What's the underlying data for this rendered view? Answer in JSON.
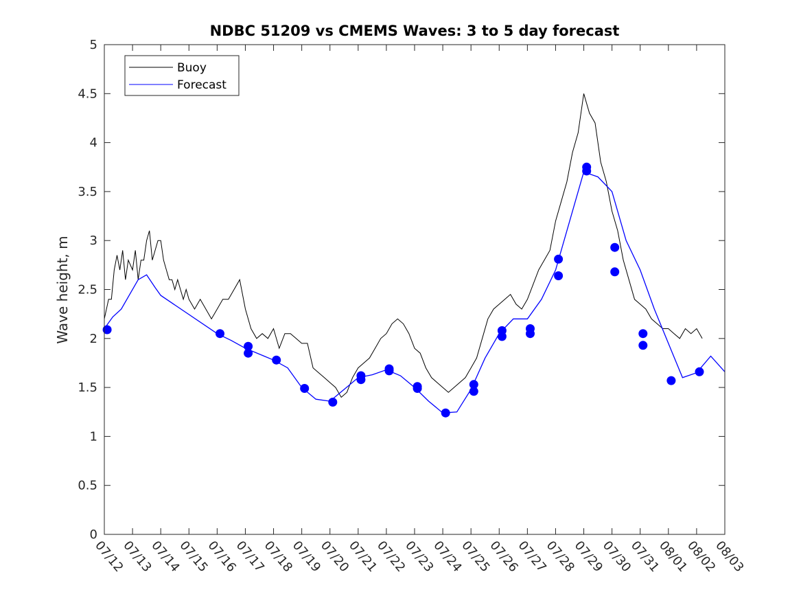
{
  "chart_data": {
    "type": "line",
    "title": "NDBC 51209 vs CMEMS Waves: 3 to 5 day forecast",
    "xlabel": "",
    "ylabel": "Wave height, m",
    "xlim": [
      "07/12",
      "08/03"
    ],
    "ylim": [
      0,
      5
    ],
    "y_ticks": [
      "0",
      "0.5",
      "1",
      "1.5",
      "2",
      "2.5",
      "3",
      "3.5",
      "4",
      "4.5",
      "5"
    ],
    "x_ticks": [
      "07/12",
      "07/13",
      "07/14",
      "07/15",
      "07/16",
      "07/17",
      "07/18",
      "07/19",
      "07/20",
      "07/21",
      "07/22",
      "07/23",
      "07/24",
      "07/25",
      "07/26",
      "07/27",
      "07/28",
      "07/29",
      "07/30",
      "07/31",
      "08/01",
      "08/02",
      "08/03"
    ],
    "grid": false,
    "legend_position": "top-left",
    "colors": {
      "buoy": "#000000",
      "forecast": "#0000ff"
    },
    "series": [
      {
        "name": "Buoy",
        "x": [
          0.0,
          0.15,
          0.25,
          0.35,
          0.45,
          0.55,
          0.65,
          0.75,
          0.85,
          1.0,
          1.1,
          1.2,
          1.3,
          1.4,
          1.5,
          1.6,
          1.7,
          1.8,
          1.9,
          2.0,
          2.1,
          2.2,
          2.3,
          2.4,
          2.5,
          2.6,
          2.7,
          2.8,
          2.9,
          3.0,
          3.2,
          3.4,
          3.6,
          3.8,
          4.0,
          4.2,
          4.4,
          4.6,
          4.8,
          5.0,
          5.2,
          5.4,
          5.6,
          5.8,
          6.0,
          6.2,
          6.4,
          6.6,
          6.8,
          7.0,
          7.2,
          7.4,
          7.6,
          7.8,
          8.0,
          8.2,
          8.4,
          8.6,
          8.8,
          9.0,
          9.2,
          9.4,
          9.6,
          9.8,
          10.0,
          10.2,
          10.4,
          10.6,
          10.8,
          11.0,
          11.2,
          11.4,
          11.6,
          11.8,
          12.0,
          12.2,
          12.4,
          12.6,
          12.8,
          13.0,
          13.2,
          13.4,
          13.6,
          13.8,
          14.0,
          14.2,
          14.4,
          14.6,
          14.8,
          15.0,
          15.2,
          15.4,
          15.6,
          15.8,
          16.0,
          16.2,
          16.4,
          16.6,
          16.8,
          17.0,
          17.2,
          17.4,
          17.6,
          17.8,
          18.0,
          18.2,
          18.4,
          18.6,
          18.8,
          19.0,
          19.2,
          19.4,
          19.6,
          19.8,
          20.0,
          20.2,
          20.4,
          20.6,
          20.8,
          21.0,
          21.2
        ],
        "values": [
          2.2,
          2.4,
          2.4,
          2.7,
          2.85,
          2.7,
          2.9,
          2.6,
          2.8,
          2.7,
          2.9,
          2.6,
          2.8,
          2.8,
          3.0,
          3.1,
          2.8,
          2.9,
          3.0,
          3.0,
          2.8,
          2.7,
          2.6,
          2.6,
          2.5,
          2.6,
          2.5,
          2.4,
          2.5,
          2.4,
          2.3,
          2.4,
          2.3,
          2.2,
          2.3,
          2.4,
          2.4,
          2.5,
          2.6,
          2.3,
          2.1,
          2.0,
          2.05,
          2.0,
          2.1,
          1.9,
          2.05,
          2.05,
          2.0,
          1.95,
          1.95,
          1.7,
          1.65,
          1.6,
          1.55,
          1.5,
          1.4,
          1.45,
          1.6,
          1.7,
          1.75,
          1.8,
          1.9,
          2.0,
          2.05,
          2.15,
          2.2,
          2.15,
          2.05,
          1.9,
          1.85,
          1.7,
          1.6,
          1.55,
          1.5,
          1.45,
          1.5,
          1.55,
          1.6,
          1.7,
          1.8,
          2.0,
          2.2,
          2.3,
          2.35,
          2.4,
          2.45,
          2.35,
          2.3,
          2.4,
          2.55,
          2.7,
          2.8,
          2.9,
          3.2,
          3.4,
          3.6,
          3.9,
          4.1,
          4.5,
          4.3,
          4.2,
          3.8,
          3.6,
          3.3,
          3.1,
          2.8,
          2.6,
          2.4,
          2.35,
          2.3,
          2.2,
          2.15,
          2.1,
          2.1,
          2.05,
          2.0,
          2.1,
          2.05,
          2.1,
          2.0
        ]
      },
      {
        "name": "Forecast",
        "x": [
          0.0,
          0.3,
          0.6,
          0.9,
          1.2,
          1.5,
          1.8,
          2.0,
          4.0,
          4.5,
          5.0,
          5.5,
          6.0,
          6.5,
          7.0,
          7.5,
          8.0,
          8.5,
          9.0,
          9.5,
          10.0,
          10.5,
          11.0,
          11.5,
          12.0,
          12.5,
          13.0,
          13.5,
          14.0,
          14.5,
          15.0,
          15.5,
          16.0,
          16.5,
          17.0,
          17.5,
          18.0,
          18.5,
          19.0,
          19.5,
          20.0,
          20.5,
          21.0,
          21.5,
          22.0
        ],
        "values": [
          2.1,
          2.22,
          2.3,
          2.45,
          2.6,
          2.65,
          2.52,
          2.44,
          2.05,
          1.98,
          1.9,
          1.84,
          1.78,
          1.7,
          1.5,
          1.38,
          1.36,
          1.48,
          1.6,
          1.63,
          1.68,
          1.62,
          1.5,
          1.36,
          1.24,
          1.25,
          1.48,
          1.8,
          2.05,
          2.2,
          2.2,
          2.4,
          2.7,
          3.2,
          3.7,
          3.65,
          3.5,
          3.0,
          2.7,
          2.3,
          1.95,
          1.6,
          1.65,
          1.82,
          1.66
        ]
      }
    ],
    "markers": {
      "x": [
        0.1,
        4.1,
        5.1,
        5.1,
        6.1,
        7.1,
        8.1,
        9.1,
        9.1,
        10.1,
        10.1,
        11.1,
        11.1,
        12.1,
        13.1,
        13.1,
        14.1,
        14.1,
        15.1,
        15.1,
        16.1,
        16.1,
        17.1,
        17.1,
        18.1,
        18.1,
        19.1,
        19.1,
        20.1,
        21.1
      ],
      "values": [
        2.09,
        2.05,
        1.92,
        1.85,
        1.78,
        1.49,
        1.35,
        1.62,
        1.58,
        1.67,
        1.69,
        1.51,
        1.49,
        1.24,
        1.53,
        1.46,
        2.08,
        2.02,
        2.1,
        2.05,
        2.81,
        2.64,
        3.75,
        3.71,
        2.93,
        2.68,
        2.05,
        1.93,
        1.57,
        1.66
      ]
    }
  }
}
